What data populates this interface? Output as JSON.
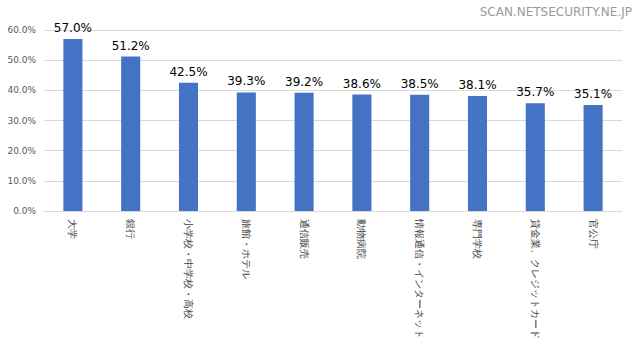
{
  "chart_data": {
    "type": "bar",
    "annotations": [
      "SCAN.NETSECURITY.NE.JP"
    ],
    "categories": [
      "大学",
      "銀行",
      "小学校・中学校・高校",
      "旅館・ホテル",
      "通信販売",
      "動物病院",
      "情報通信・インターネット",
      "専門学校",
      "貸金業、クレジットカード",
      "官公庁"
    ],
    "values": [
      57.0,
      51.2,
      42.5,
      39.3,
      39.2,
      38.6,
      38.5,
      38.1,
      35.7,
      35.1
    ],
    "value_labels": [
      "57.0%",
      "51.2%",
      "42.5%",
      "39.3%",
      "39.2%",
      "38.6%",
      "38.5%",
      "38.1%",
      "35.7%",
      "35.1%"
    ],
    "color": "#4472c4",
    "ylim": [
      0,
      60
    ],
    "yticks": [
      {
        "value": 0,
        "label": "0.0%"
      },
      {
        "value": 10,
        "label": "10.0%"
      },
      {
        "value": 20,
        "label": "20.0%"
      },
      {
        "value": 30,
        "label": "30.0%"
      },
      {
        "value": 40,
        "label": "40.0%"
      },
      {
        "value": 50,
        "label": "50.0%"
      },
      {
        "value": 60,
        "label": "60.0%"
      }
    ],
    "grid": true,
    "data_labels": true
  }
}
